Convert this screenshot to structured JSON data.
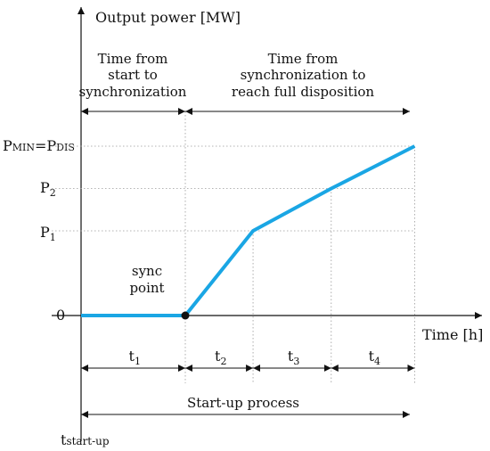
{
  "chart_data": {
    "type": "line",
    "ylabel": "Output power [MW]",
    "xlabel": "Time [h]",
    "y_ticks": [
      {
        "key": "pmin",
        "label": "PMIN=PDIS",
        "value": 1.0
      },
      {
        "key": "p2",
        "label": "P2",
        "value": 0.75
      },
      {
        "key": "p1",
        "label": "P1",
        "value": 0.5
      },
      {
        "key": "zero",
        "label": "0",
        "value": 0.0
      }
    ],
    "x_events": [
      {
        "key": "t0",
        "value": 0.0
      },
      {
        "key": "ts",
        "value": 1.0
      },
      {
        "key": "t2",
        "value": 1.65
      },
      {
        "key": "t3",
        "value": 2.4
      },
      {
        "key": "t4",
        "value": 3.2
      }
    ],
    "series": [
      {
        "color": "#1aa6e4",
        "points": [
          {
            "x": 0.0,
            "y": 0.0
          },
          {
            "x": 1.0,
            "y": 0.0
          },
          {
            "x": 1.65,
            "y": 0.5
          },
          {
            "x": 2.4,
            "y": 0.75
          },
          {
            "x": 3.2,
            "y": 1.0
          }
        ]
      }
    ],
    "sync_point": {
      "x": 1.0,
      "y": 0.0,
      "label_line1": "sync",
      "label_line2": "point"
    },
    "interval_labels": [
      "t1",
      "t2",
      "t3",
      "t4"
    ],
    "phase_labels": {
      "start_to_sync": [
        "Time from",
        "start to",
        "synchronization"
      ],
      "sync_to_full": [
        "Time from",
        "synchronization to",
        "reach full disposition"
      ]
    },
    "process_label": "Start-up process",
    "start_label": "tstart-up",
    "xlim": [
      0,
      3.8
    ],
    "ylim": [
      -0.45,
      1.5
    ],
    "grid": false
  }
}
